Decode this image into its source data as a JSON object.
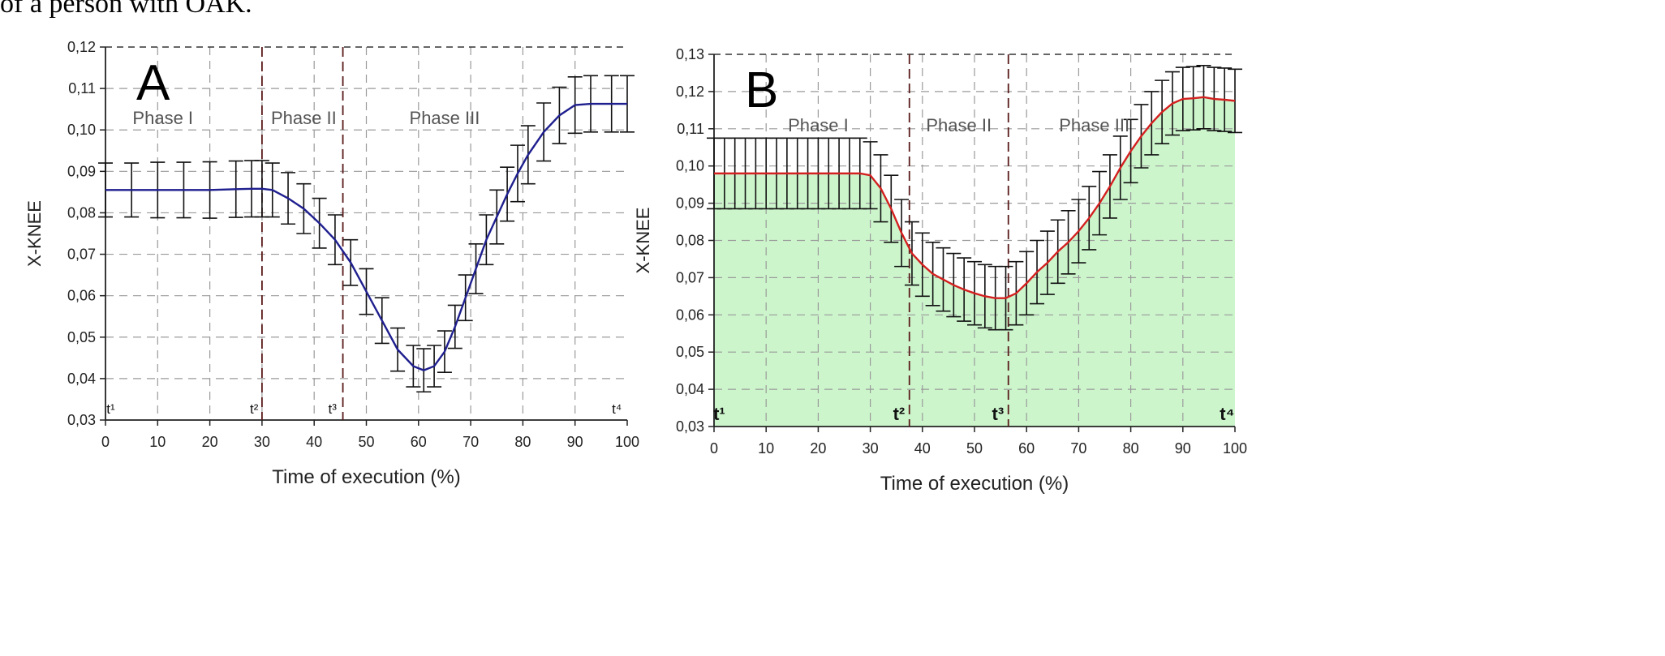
{
  "caption": "of a person with OAK.",
  "chart_data": [
    {
      "type": "line",
      "panel_label": "A",
      "xlabel": "Time of execution (%)",
      "ylabel": "X-KNEE",
      "xlim": [
        0,
        100
      ],
      "ylim": [
        0.03,
        0.12
      ],
      "x_ticks": [
        "0",
        "10",
        "20",
        "30",
        "40",
        "50",
        "60",
        "70",
        "80",
        "90",
        "100"
      ],
      "y_ticks": [
        "0,03",
        "0,04",
        "0,05",
        "0,06",
        "0,07",
        "0,08",
        "0,09",
        "0,10",
        "0,11",
        "0,12"
      ],
      "grid": true,
      "fill": false,
      "line_color": "#1f1f8f",
      "phase_labels": [
        {
          "text": "Phase I",
          "x": 11
        },
        {
          "text": "Phase II",
          "x": 38
        },
        {
          "text": "Phase III",
          "x": 65
        }
      ],
      "phase_boundaries": [
        30,
        45.5
      ],
      "time_markers": [
        {
          "text": "t¹",
          "x": 1
        },
        {
          "text": "t²",
          "x": 28.5
        },
        {
          "text": "t³",
          "x": 43.5
        },
        {
          "text": "t⁴",
          "x": 98
        }
      ],
      "series": [
        {
          "x": [
            0,
            5,
            10,
            15,
            20,
            25,
            28,
            30,
            32,
            35,
            38,
            41,
            44,
            47,
            50,
            53,
            56,
            59,
            61,
            63,
            65,
            67,
            69,
            71,
            73,
            75,
            77,
            79,
            81,
            84,
            87,
            90,
            93,
            97,
            100
          ],
          "y": [
            0.0855,
            0.0855,
            0.0855,
            0.0855,
            0.0855,
            0.0857,
            0.0858,
            0.0858,
            0.0855,
            0.0835,
            0.081,
            0.0775,
            0.0735,
            0.068,
            0.061,
            0.054,
            0.047,
            0.043,
            0.042,
            0.043,
            0.0465,
            0.0525,
            0.0595,
            0.0665,
            0.0735,
            0.079,
            0.0845,
            0.0895,
            0.094,
            0.0995,
            0.1035,
            0.106,
            0.1063,
            0.1063,
            0.1063
          ],
          "error": [
            0.0065,
            0.0065,
            0.0067,
            0.0067,
            0.0068,
            0.0068,
            0.0068,
            0.0068,
            0.0065,
            0.0062,
            0.006,
            0.006,
            0.006,
            0.0055,
            0.0055,
            0.0055,
            0.0052,
            0.005,
            0.0052,
            0.005,
            0.005,
            0.0052,
            0.0055,
            0.006,
            0.006,
            0.0065,
            0.0065,
            0.0068,
            0.007,
            0.007,
            0.0068,
            0.0068,
            0.0068,
            0.0068,
            0.0068
          ]
        }
      ]
    },
    {
      "type": "area",
      "panel_label": "B",
      "xlabel": "Time of execution (%)",
      "ylabel": "X-KNEE",
      "xlim": [
        0,
        100
      ],
      "ylim": [
        0.03,
        0.13
      ],
      "x_ticks": [
        "0",
        "10",
        "20",
        "30",
        "40",
        "50",
        "60",
        "70",
        "80",
        "90",
        "100"
      ],
      "y_ticks": [
        "0,03",
        "0,04",
        "0,05",
        "0,06",
        "0,07",
        "0,08",
        "0,09",
        "0,10",
        "0,11",
        "0,12",
        "0,13"
      ],
      "grid": true,
      "fill": true,
      "fill_color": "#ccf5cc",
      "line_color": "#d42020",
      "phase_labels": [
        {
          "text": "Phase I",
          "x": 20
        },
        {
          "text": "Phase II",
          "x": 47
        },
        {
          "text": "Phase III",
          "x": 73
        }
      ],
      "phase_boundaries": [
        37.5,
        56.5
      ],
      "time_markers": [
        {
          "text": "t¹",
          "x": 1
        },
        {
          "text": "t²",
          "x": 35.5
        },
        {
          "text": "t³",
          "x": 54.5
        },
        {
          "text": "t⁴",
          "x": 98.5
        }
      ],
      "series": [
        {
          "x": [
            0,
            2,
            4,
            6,
            8,
            10,
            12,
            14,
            16,
            18,
            20,
            22,
            24,
            26,
            28,
            30,
            32,
            34,
            36,
            38,
            40,
            42,
            44,
            46,
            48,
            50,
            52,
            54,
            56,
            58,
            60,
            62,
            64,
            66,
            68,
            70,
            72,
            74,
            76,
            78,
            80,
            82,
            84,
            86,
            88,
            90,
            92,
            94,
            96,
            98,
            100
          ],
          "y": [
            0.098,
            0.098,
            0.098,
            0.098,
            0.098,
            0.098,
            0.098,
            0.098,
            0.098,
            0.098,
            0.098,
            0.098,
            0.098,
            0.098,
            0.098,
            0.0975,
            0.094,
            0.0885,
            0.082,
            0.0765,
            0.0735,
            0.071,
            0.0695,
            0.068,
            0.0668,
            0.0658,
            0.065,
            0.0645,
            0.0645,
            0.0658,
            0.0685,
            0.0715,
            0.074,
            0.077,
            0.0795,
            0.0825,
            0.086,
            0.09,
            0.0945,
            0.0995,
            0.104,
            0.108,
            0.1115,
            0.1145,
            0.1168,
            0.118,
            0.1182,
            0.1185,
            0.118,
            0.1178,
            0.1175
          ],
          "error": [
            0.0095,
            0.0095,
            0.0095,
            0.0095,
            0.0095,
            0.0095,
            0.0095,
            0.0095,
            0.0095,
            0.0095,
            0.0095,
            0.0095,
            0.0095,
            0.0095,
            0.0095,
            0.009,
            0.009,
            0.009,
            0.009,
            0.0085,
            0.0085,
            0.0085,
            0.0085,
            0.0085,
            0.0085,
            0.0085,
            0.0085,
            0.0085,
            0.0085,
            0.0085,
            0.0085,
            0.0085,
            0.0085,
            0.0085,
            0.0085,
            0.0085,
            0.0085,
            0.0085,
            0.0085,
            0.0085,
            0.0085,
            0.0085,
            0.0085,
            0.0085,
            0.0085,
            0.0085,
            0.0085,
            0.0085,
            0.0085,
            0.0085,
            0.0085
          ]
        }
      ]
    }
  ]
}
